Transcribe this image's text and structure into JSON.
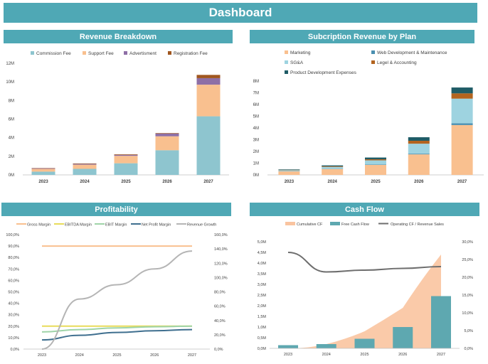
{
  "dashboard_title": "Dashboard",
  "panels": {
    "revenue": "Revenue Breakdown",
    "subscription": "Subcription Revenue by Plan",
    "profitability": "Profitability",
    "cashflow": "Cash Flow"
  },
  "chart_data": [
    {
      "type": "bar",
      "stacked": true,
      "title": "Revenue Breakdown",
      "categories": [
        "2023",
        "2024",
        "2025",
        "2026",
        "2027"
      ],
      "ylim": [
        0,
        12000000
      ],
      "yticks": [
        "0M",
        "2M",
        "4M",
        "6M",
        "8M",
        "10M",
        "12M"
      ],
      "legend_position": "top",
      "series": [
        {
          "name": "Commission Fee",
          "color": "#8ec5cf",
          "values": [
            350000,
            650000,
            1250000,
            2650000,
            6300000
          ]
        },
        {
          "name": "Support Fee",
          "color": "#f9c08f",
          "values": [
            300000,
            450000,
            800000,
            1500000,
            3400000
          ]
        },
        {
          "name": "Advertisment",
          "color": "#8e6fa6",
          "values": [
            60000,
            80000,
            100000,
            300000,
            700000
          ]
        },
        {
          "name": "Registration Fee",
          "color": "#a0561f",
          "values": [
            30000,
            50000,
            60000,
            50000,
            350000
          ]
        }
      ]
    },
    {
      "type": "bar",
      "stacked": true,
      "title": "Subcription Revenue by Plan",
      "categories": [
        "2023",
        "2024",
        "2025",
        "2026",
        "2027"
      ],
      "ylim": [
        0,
        8000000
      ],
      "yticks": [
        "0M",
        "1M",
        "2M",
        "3M",
        "4M",
        "5M",
        "6M",
        "7M",
        "8M"
      ],
      "legend_position": "top",
      "series": [
        {
          "name": "Marketing",
          "color": "#f9c08f",
          "values": [
            300000,
            500000,
            850000,
            1750000,
            4250000
          ]
        },
        {
          "name": "Web Development & Maintenance",
          "color": "#4a8fb0",
          "values": [
            20000,
            30000,
            40000,
            60000,
            150000
          ]
        },
        {
          "name": "SG&A",
          "color": "#9ed3e0",
          "values": [
            80000,
            150000,
            350000,
            850000,
            2100000
          ]
        },
        {
          "name": "Legel & Accounting",
          "color": "#b3641f",
          "values": [
            30000,
            50000,
            90000,
            250000,
            450000
          ]
        },
        {
          "name": "Product Development Expenses",
          "color": "#1f5c66",
          "values": [
            40000,
            80000,
            150000,
            300000,
            500000
          ]
        }
      ]
    },
    {
      "type": "line",
      "title": "Profitability",
      "categories": [
        "2023",
        "2024",
        "2025",
        "2026",
        "2027"
      ],
      "ylim": [
        0,
        100
      ],
      "y2lim": [
        0,
        160
      ],
      "yticks": [
        "0,0%",
        "10,0%",
        "20,0%",
        "30,0%",
        "40,0%",
        "50,0%",
        "60,0%",
        "70,0%",
        "80,0%",
        "90,0%",
        "100,0%"
      ],
      "y2ticks": [
        "0,0%",
        "20,0%",
        "40,0%",
        "60,0%",
        "80,0%",
        "100,0%",
        "120,0%",
        "140,0%",
        "160,0%"
      ],
      "legend_position": "top",
      "series": [
        {
          "name": "Gross Margin",
          "color": "#f9c08f",
          "axis": "left",
          "values": [
            90,
            90,
            90,
            90,
            90
          ]
        },
        {
          "name": "EBITDA Margin",
          "color": "#e8dc5a",
          "axis": "left",
          "values": [
            20,
            20,
            20,
            20,
            20
          ]
        },
        {
          "name": "EBIT Margin",
          "color": "#9fd4a8",
          "axis": "left",
          "values": [
            15,
            17,
            18.5,
            19.5,
            20
          ]
        },
        {
          "name": "Net Profit Margin",
          "color": "#3f6f8f",
          "axis": "left",
          "values": [
            8,
            12,
            14.5,
            16,
            17
          ]
        },
        {
          "name": "Revenue Growth",
          "color": "#b5b5b5",
          "axis": "right",
          "values": [
            0,
            70,
            90,
            112,
            137
          ]
        }
      ]
    },
    {
      "type": "bar",
      "title": "Cash Flow",
      "categories": [
        "2023",
        "2024",
        "2025",
        "2026",
        "2027"
      ],
      "ylim": [
        0,
        5000000
      ],
      "y2lim": [
        0,
        30
      ],
      "yticks": [
        "0,0M",
        "0,5M",
        "1,0M",
        "1,5M",
        "2,0M",
        "2,5M",
        "3,0M",
        "3,5M",
        "4,0M",
        "4,5M",
        "5,0M"
      ],
      "y2ticks": [
        "0,0%",
        "5,0%",
        "10,0%",
        "15,0%",
        "20,0%",
        "25,0%",
        "30,0%"
      ],
      "legend_position": "top",
      "series": [
        {
          "name": "Cumulative CF",
          "kind": "area",
          "color": "#f9c4a0",
          "axis": "left",
          "values": [
            0,
            200000,
            800000,
            1900000,
            4400000
          ]
        },
        {
          "name": "Free Cash Flow",
          "kind": "bar",
          "color": "#5ea8b0",
          "axis": "left",
          "values": [
            150000,
            200000,
            450000,
            1000000,
            2450000
          ]
        },
        {
          "name": "Operating CF / Revenue Sales",
          "kind": "line",
          "color": "#6e6e6e",
          "axis": "right",
          "values": [
            27,
            21.5,
            22,
            22.5,
            23
          ]
        }
      ]
    }
  ]
}
